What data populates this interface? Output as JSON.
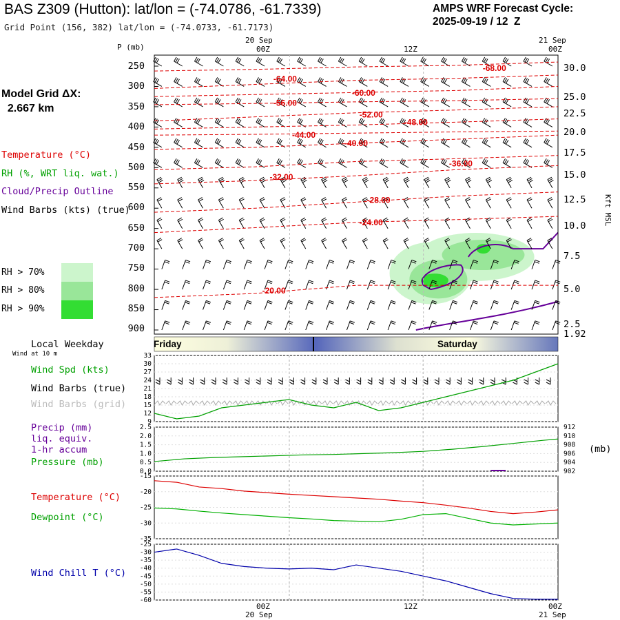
{
  "header": {
    "title": "BAS Z309 (Hutton):  lat/lon = (-74.0786, -61.7339)",
    "subtitle": "Grid Point (156, 382) lat/lon = (-74.0733, -61.7173)",
    "cycle_line1": "AMPS WRF Forecast Cycle:",
    "cycle_line2": "2025-09-19 / 12  Z"
  },
  "model_grid": {
    "line1": "Model Grid ΔX:",
    "line2": "  2.667 km"
  },
  "time_axis": {
    "top_labels": [
      {
        "date": "20 Sep",
        "hour": "00Z"
      },
      {
        "date": "",
        "hour": "12Z"
      },
      {
        "date": "21 Sep",
        "hour": "00Z"
      }
    ],
    "bottom_labels": [
      {
        "hour": "00Z",
        "date": "20 Sep"
      },
      {
        "hour": "12Z",
        "date": ""
      },
      {
        "hour": "00Z",
        "date": "21 Sep"
      }
    ]
  },
  "colors": {
    "temperature": "#dd0000",
    "rh": "#00a000",
    "cloud": "#660099",
    "wind_speed": "#00a000",
    "pressure": "#00a000",
    "dewpoint": "#00b000",
    "wind_chill": "#0000aa",
    "rh70": "#ccf5cc",
    "rh80": "#99e699",
    "rh90": "#33dd33",
    "day_band_light": "#ffffe8",
    "day_band_dark": "#5566bb"
  },
  "left_legend": {
    "p_label": "P (mb)",
    "temperature": "Temperature (°C)",
    "rh": "RH (%, WRT liq. wat.)",
    "cloud": "Cloud/Precip Outline",
    "barbs": "Wind Barbs (kts) (true)",
    "rh_boxes": [
      "RH > 70%",
      "RH > 80%",
      "RH > 90%"
    ]
  },
  "right_axis": {
    "label": "Kft MSL"
  },
  "cross_section": {
    "pressure_levels": [
      "250",
      "300",
      "350",
      "400",
      "450",
      "500",
      "550",
      "600",
      "650",
      "700",
      "750",
      "800",
      "850",
      "900"
    ],
    "height_ticks_kft": [
      "30.0",
      "25.0",
      "22.5",
      "20.0",
      "17.5",
      "15.0",
      "12.5",
      "10.0",
      "7.5",
      "5.0",
      "2.5",
      "1.92"
    ],
    "temperature_contours": [
      "-68.00",
      "-64.00",
      "-60.00",
      "-56.00",
      "-52.00",
      "-48.00",
      "-44.00",
      "-40.00",
      "-36.00",
      "-32.00",
      "-28.00",
      "-24.00",
      "-20.00"
    ]
  },
  "weekday_band": {
    "label": "Local Weekday",
    "days": [
      "Friday",
      "Saturday"
    ]
  },
  "wind_panel": {
    "sublabel": "Wind at 10 m",
    "speed_label": "Wind Spd (kts)",
    "barbs_true_label": "Wind Barbs (true)",
    "barbs_grid_label": "Wind Barbs (grid)",
    "yticks": [
      "33",
      "30",
      "27",
      "24",
      "21",
      "18",
      "15",
      "12",
      "9"
    ]
  },
  "precip_panel": {
    "precip_label": "Precip (mm)",
    "liq_label": "liq. equiv.",
    "accum_label": "1-hr accum",
    "pressure_label": "Pressure (mb)",
    "left_ticks": [
      "2.5",
      "2.0",
      "1.5",
      "1.0",
      "0.5",
      "0.0"
    ],
    "right_ticks": [
      "912",
      "910",
      "908",
      "906",
      "904",
      "902"
    ],
    "unit": "(mb)"
  },
  "temp_panel": {
    "temp_label": "Temperature (°C)",
    "dew_label": "Dewpoint (°C)",
    "yticks": [
      "-15",
      "-20",
      "-25",
      "-30",
      "-35"
    ]
  },
  "chill_panel": {
    "label": "Wind Chill T (°C)",
    "yticks": [
      "-25",
      "-30",
      "-35",
      "-40",
      "-45",
      "-50",
      "-55",
      "-60"
    ]
  },
  "chart_data": [
    {
      "type": "line",
      "title": "Wind Spd (kts)",
      "x_hours": [
        0,
        3,
        6,
        9,
        12,
        15,
        18,
        21,
        24,
        27,
        30,
        33,
        36,
        39,
        42,
        45,
        48,
        51,
        54
      ],
      "ylim": [
        9,
        33
      ],
      "series": [
        {
          "name": "Wind Spd (kts)",
          "values": [
            12,
            10,
            11,
            14,
            15,
            16,
            17,
            15,
            14,
            16,
            13,
            14,
            16,
            18,
            20,
            22,
            24,
            27,
            30
          ]
        }
      ]
    },
    {
      "type": "line",
      "title": "Pressure (mb)",
      "x_hours": [
        0,
        4,
        8,
        12,
        16,
        20,
        24,
        28,
        32,
        36,
        40,
        44,
        48,
        52,
        54
      ],
      "ylim": [
        902,
        912
      ],
      "series": [
        {
          "name": "Pressure (mb)",
          "values": [
            904.2,
            904.8,
            905.1,
            905.3,
            905.5,
            905.7,
            905.8,
            906.0,
            906.2,
            906.5,
            907.0,
            907.6,
            908.3,
            909.0,
            909.3
          ]
        }
      ]
    },
    {
      "type": "line",
      "title": "Temperature / Dewpoint",
      "x_hours": [
        0,
        3,
        6,
        9,
        12,
        15,
        18,
        21,
        24,
        27,
        30,
        33,
        36,
        39,
        42,
        45,
        48,
        51,
        54
      ],
      "ylim": [
        -35,
        -15
      ],
      "series": [
        {
          "name": "Temperature (°C)",
          "values": [
            -16.5,
            -17,
            -18.5,
            -19,
            -19.8,
            -20.3,
            -20.8,
            -21.2,
            -21.6,
            -22,
            -22.4,
            -23,
            -23.5,
            -24.3,
            -25.2,
            -26.3,
            -27,
            -26.5,
            -25.8
          ]
        },
        {
          "name": "Dewpoint (°C)",
          "values": [
            -25.2,
            -25.5,
            -26.2,
            -26.8,
            -27.3,
            -27.8,
            -28.3,
            -28.7,
            -29.2,
            -29.4,
            -29.6,
            -28.8,
            -27.3,
            -27,
            -28.5,
            -30,
            -30.6,
            -30.3,
            -30.0
          ]
        }
      ]
    },
    {
      "type": "line",
      "title": "Wind Chill T (°C)",
      "x_hours": [
        0,
        3,
        6,
        9,
        12,
        15,
        18,
        21,
        24,
        27,
        30,
        33,
        36,
        39,
        42,
        45,
        48,
        51,
        54
      ],
      "ylim": [
        -60,
        -25
      ],
      "series": [
        {
          "name": "Wind Chill T (°C)",
          "values": [
            -30,
            -28,
            -32,
            -37,
            -39,
            -40,
            -40.5,
            -40,
            -41,
            -38,
            -40,
            -42,
            -45,
            -48,
            -52,
            -56,
            -59,
            -59.5,
            -59.5
          ]
        }
      ]
    }
  ]
}
